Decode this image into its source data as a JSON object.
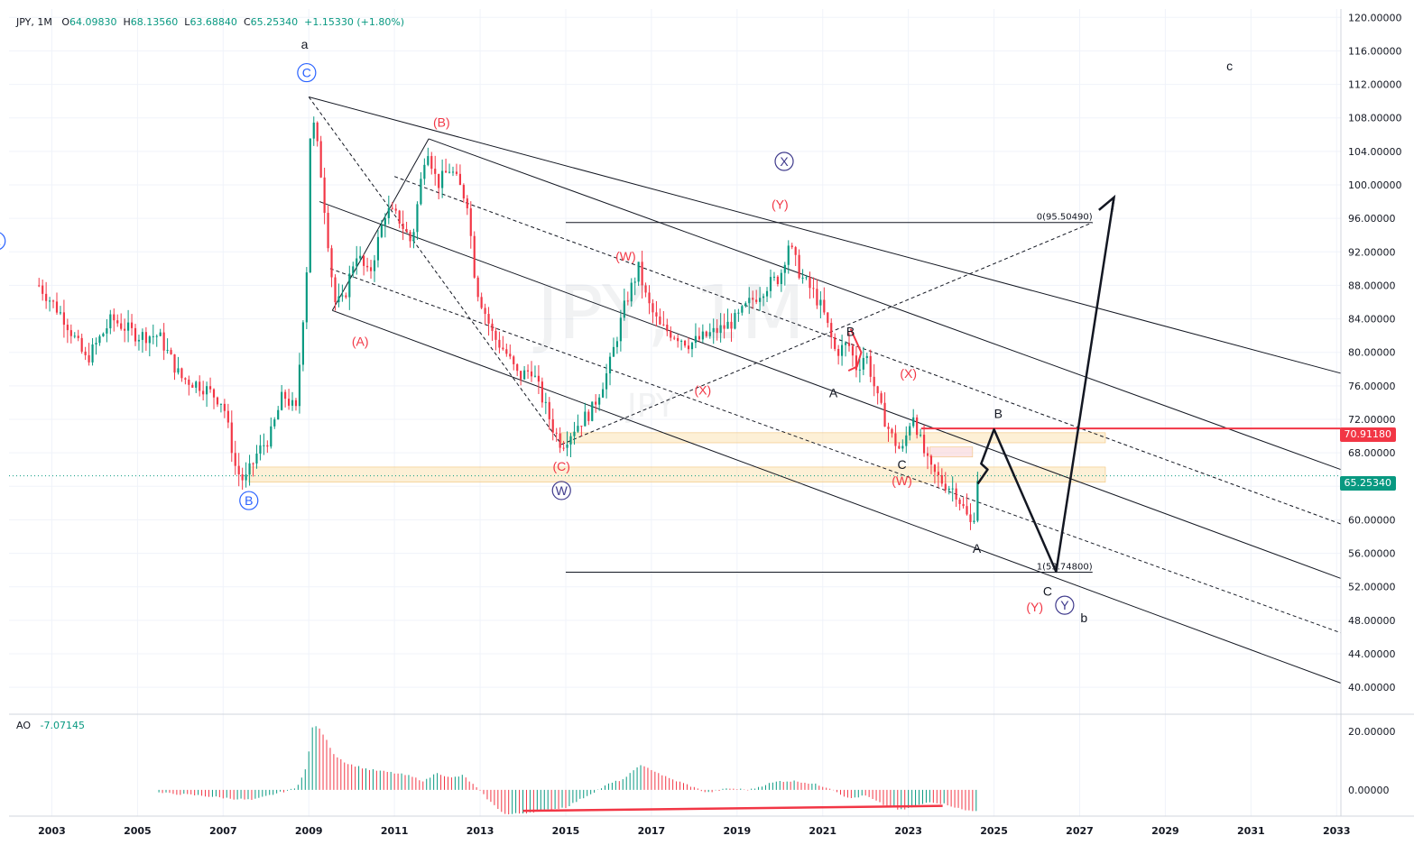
{
  "header": {
    "symbol": "JPY, 1M",
    "open_label": "O",
    "open": "64.09830",
    "high_label": "H",
    "high": "68.13560",
    "low_label": "L",
    "low": "63.68840",
    "close_label": "C",
    "close": "65.25340",
    "change": "+1.15330 (+1.80%)"
  },
  "watermark": {
    "line1": "JPY, 1M",
    "line2": "JPY"
  },
  "ao_header": {
    "name": "AO",
    "value": "-7.07145"
  },
  "price_tags": [
    {
      "value": "70.91180",
      "color": "#f23645"
    },
    {
      "value": "65.25340",
      "color": "#089981"
    }
  ],
  "chart_data": {
    "type": "candlestick",
    "symbol": "JPY",
    "interval": "1M",
    "price_axis": {
      "ylim": [
        37,
        121
      ],
      "ticks": [
        "120.00000",
        "116.00000",
        "112.00000",
        "108.00000",
        "104.00000",
        "100.00000",
        "96.00000",
        "92.00000",
        "88.00000",
        "84.00000",
        "80.00000",
        "76.00000",
        "72.00000",
        "68.00000",
        "64.00000",
        "60.00000",
        "56.00000",
        "52.00000",
        "48.00000",
        "44.00000",
        "40.00000"
      ]
    },
    "time_axis": {
      "xlim": [
        2002.0,
        2033.1
      ],
      "ticks": [
        "2003",
        "2005",
        "2007",
        "2009",
        "2011",
        "2013",
        "2015",
        "2017",
        "2019",
        "2021",
        "2023",
        "2025",
        "2027",
        "2029",
        "2031",
        "2033"
      ]
    },
    "ao_axis": {
      "ylim": [
        -9,
        25
      ],
      "ticks": [
        "20.00000",
        "0.00000"
      ]
    },
    "price_path": [
      [
        2002.7,
        88
      ],
      [
        2003.3,
        84
      ],
      [
        2003.8,
        79
      ],
      [
        2004.4,
        84
      ],
      [
        2005.0,
        82
      ],
      [
        2005.5,
        82
      ],
      [
        2006.0,
        77
      ],
      [
        2006.5,
        76
      ],
      [
        2007.0,
        74
      ],
      [
        2007.3,
        66
      ],
      [
        2007.5,
        64.5
      ],
      [
        2007.8,
        68
      ],
      [
        2008.1,
        70
      ],
      [
        2008.4,
        75
      ],
      [
        2008.7,
        73
      ],
      [
        2008.95,
        90
      ],
      [
        2009.05,
        109
      ],
      [
        2009.25,
        103
      ],
      [
        2009.6,
        86
      ],
      [
        2009.8,
        86
      ],
      [
        2010.1,
        92
      ],
      [
        2010.4,
        89
      ],
      [
        2010.8,
        97
      ],
      [
        2011.1,
        96
      ],
      [
        2011.4,
        93
      ],
      [
        2011.75,
        105
      ],
      [
        2012.0,
        100
      ],
      [
        2012.3,
        102
      ],
      [
        2012.7,
        98
      ],
      [
        2012.9,
        88
      ],
      [
        2013.3,
        82
      ],
      [
        2013.6,
        80
      ],
      [
        2013.9,
        77
      ],
      [
        2014.2,
        78
      ],
      [
        2014.7,
        71
      ],
      [
        2014.9,
        69
      ],
      [
        2015.2,
        71
      ],
      [
        2015.6,
        73
      ],
      [
        2016.0,
        78
      ],
      [
        2016.4,
        86
      ],
      [
        2016.7,
        90
      ],
      [
        2016.9,
        86
      ],
      [
        2017.2,
        83
      ],
      [
        2017.6,
        82
      ],
      [
        2017.9,
        81
      ],
      [
        2018.3,
        82
      ],
      [
        2018.7,
        83
      ],
      [
        2019.0,
        84
      ],
      [
        2019.3,
        86
      ],
      [
        2019.7,
        88
      ],
      [
        2020.0,
        89
      ],
      [
        2020.2,
        93
      ],
      [
        2020.5,
        89
      ],
      [
        2020.8,
        87
      ],
      [
        2021.0,
        85
      ],
      [
        2021.3,
        80
      ],
      [
        2021.6,
        81
      ],
      [
        2021.8,
        78
      ],
      [
        2022.0,
        80
      ],
      [
        2022.3,
        74
      ],
      [
        2022.6,
        70
      ],
      [
        2022.85,
        68
      ],
      [
        2023.1,
        73
      ],
      [
        2023.3,
        69
      ],
      [
        2023.5,
        66
      ],
      [
        2023.8,
        64.5
      ],
      [
        2024.1,
        63.5
      ],
      [
        2024.4,
        60
      ],
      [
        2024.5,
        59
      ],
      [
        2024.62,
        65.25
      ]
    ],
    "ao_series": [
      [
        2005.5,
        -1
      ],
      [
        2006.5,
        -2
      ],
      [
        2007.2,
        -3
      ],
      [
        2007.7,
        -3.5
      ],
      [
        2008.3,
        -1
      ],
      [
        2008.7,
        0.5
      ],
      [
        2008.95,
        8
      ],
      [
        2009.1,
        23
      ],
      [
        2009.3,
        20
      ],
      [
        2009.6,
        12
      ],
      [
        2009.9,
        9
      ],
      [
        2010.4,
        7
      ],
      [
        2010.9,
        6
      ],
      [
        2011.3,
        5
      ],
      [
        2011.7,
        3
      ],
      [
        2012.0,
        6
      ],
      [
        2012.3,
        4
      ],
      [
        2012.6,
        5
      ],
      [
        2012.9,
        1
      ],
      [
        2013.3,
        -5
      ],
      [
        2013.6,
        -8.5
      ],
      [
        2014.0,
        -8
      ],
      [
        2014.5,
        -7
      ],
      [
        2015.0,
        -6
      ],
      [
        2015.5,
        -2
      ],
      [
        2016.0,
        2
      ],
      [
        2016.4,
        4
      ],
      [
        2016.7,
        8.5
      ],
      [
        2017.0,
        7
      ],
      [
        2017.4,
        4
      ],
      [
        2017.8,
        2
      ],
      [
        2018.3,
        -1
      ],
      [
        2018.8,
        0.5
      ],
      [
        2019.3,
        0
      ],
      [
        2019.7,
        2
      ],
      [
        2020.0,
        3
      ],
      [
        2020.4,
        3
      ],
      [
        2020.8,
        2
      ],
      [
        2021.2,
        0.5
      ],
      [
        2021.6,
        -3
      ],
      [
        2022.0,
        -2
      ],
      [
        2022.4,
        -5
      ],
      [
        2022.8,
        -7
      ],
      [
        2023.1,
        -6
      ],
      [
        2023.5,
        -4
      ],
      [
        2023.9,
        -5
      ],
      [
        2024.3,
        -7
      ],
      [
        2024.62,
        -7.07
      ]
    ],
    "horizontal_lines": [
      {
        "x0": 2015.0,
        "x1": 2027.3,
        "y": 95.5049,
        "label": "0(95.50490)"
      },
      {
        "x0": 2015.0,
        "x1": 2027.3,
        "y": 53.748,
        "label": "1(53.74800)"
      },
      {
        "x0": 2023.3,
        "x1": 2033.1,
        "y": 70.9118,
        "color": "#f23645"
      }
    ],
    "zones": [
      {
        "x0": 2007.6,
        "x1": 2027.6,
        "y0": 64.5,
        "y1": 66.3,
        "color": "#fbe3b4"
      },
      {
        "x0": 2014.9,
        "x1": 2027.6,
        "y0": 69.2,
        "y1": 70.4,
        "color": "#fbe3b4"
      },
      {
        "x0": 2023.5,
        "x1": 2024.5,
        "y0": 67.5,
        "y1": 68.7,
        "color": "#f8d0d3"
      }
    ],
    "trend_lines": [
      {
        "points": [
          [
            2009.0,
            110.5
          ],
          [
            2033.1,
            77.5
          ]
        ],
        "style": "solid"
      },
      {
        "points": [
          [
            2009.25,
            98
          ],
          [
            2033.1,
            53
          ]
        ],
        "style": "solid"
      },
      {
        "points": [
          [
            2009.55,
            85
          ],
          [
            2033.1,
            40.5
          ]
        ],
        "style": "solid"
      },
      {
        "points": [
          [
            2009.5,
            90
          ],
          [
            2033.1,
            46.5
          ]
        ],
        "style": "dashed"
      },
      {
        "points": [
          [
            2011.0,
            101
          ],
          [
            2033.1,
            59.5
          ]
        ],
        "style": "dashed"
      },
      {
        "points": [
          [
            2009.55,
            85
          ],
          [
            2011.8,
            105.5
          ]
        ],
        "style": "solid"
      },
      {
        "points": [
          [
            2011.8,
            105.5
          ],
          [
            2033.1,
            66
          ]
        ],
        "style": "solid"
      },
      {
        "points": [
          [
            2009.0,
            110.5
          ],
          [
            2014.9,
            69
          ]
        ],
        "style": "dashed"
      },
      {
        "points": [
          [
            2014.9,
            69
          ],
          [
            2027.3,
            95.5
          ]
        ],
        "style": "dashed"
      },
      {
        "points": [
          [
            2021.65,
            82.8
          ],
          [
            2021.9,
            80
          ],
          [
            2021.8,
            78.3
          ],
          [
            2021.6,
            77.8
          ]
        ],
        "style": "red"
      }
    ],
    "projection": [
      [
        2024.62,
        64.3
      ],
      [
        2024.85,
        66
      ],
      [
        2024.7,
        66.7
      ],
      [
        2025.0,
        70.8
      ],
      [
        2026.45,
        53.8
      ],
      [
        2027.8,
        98.5
      ]
    ],
    "projection_arrow": [
      [
        2027.45,
        97
      ],
      [
        2027.8,
        98.5
      ],
      [
        2027.75,
        96.8
      ]
    ],
    "divergence_line": [
      [
        2014.0,
        -7.2
      ],
      [
        2023.8,
        -5.5
      ]
    ],
    "wave_labels": [
      {
        "text": "a",
        "x": 2008.9,
        "y": 116.8,
        "color": "#131722"
      },
      {
        "text": "C",
        "x": 2008.95,
        "y": 113.4,
        "color": "#2962ff",
        "circle": true
      },
      {
        "text": "A",
        "x": 2001.7,
        "y": 93.3,
        "color": "#2962ff",
        "circle": true
      },
      {
        "text": "B",
        "x": 2007.6,
        "y": 62.3,
        "color": "#2962ff",
        "circle": true
      },
      {
        "text": "(A)",
        "x": 2010.2,
        "y": 81.3,
        "color": "#f23645"
      },
      {
        "text": "(B)",
        "x": 2012.1,
        "y": 107.5,
        "color": "#f23645"
      },
      {
        "text": "(C)",
        "x": 2014.9,
        "y": 66.4,
        "color": "#f23645"
      },
      {
        "text": "W",
        "x": 2014.9,
        "y": 63.5,
        "color": "#3f3a8c",
        "circle": true
      },
      {
        "text": "(W)",
        "x": 2016.4,
        "y": 91.5,
        "color": "#f23645"
      },
      {
        "text": "(X)",
        "x": 2018.2,
        "y": 75.5,
        "color": "#f23645"
      },
      {
        "text": "X",
        "x": 2020.1,
        "y": 102.8,
        "color": "#3f3a8c",
        "circle": true
      },
      {
        "text": "(Y)",
        "x": 2020.0,
        "y": 97.7,
        "color": "#f23645"
      },
      {
        "text": "B",
        "x": 2021.65,
        "y": 82.5,
        "color": "#131722"
      },
      {
        "text": "A",
        "x": 2021.25,
        "y": 75.2,
        "color": "#131722"
      },
      {
        "text": "(X)",
        "x": 2023.0,
        "y": 77.5,
        "color": "#f23645"
      },
      {
        "text": "C",
        "x": 2022.85,
        "y": 66.6,
        "color": "#131722"
      },
      {
        "text": "(W)",
        "x": 2022.85,
        "y": 64.7,
        "color": "#f23645"
      },
      {
        "text": "B",
        "x": 2025.1,
        "y": 72.7,
        "color": "#131722"
      },
      {
        "text": "A",
        "x": 2024.6,
        "y": 56.6,
        "color": "#131722"
      },
      {
        "text": "C",
        "x": 2026.25,
        "y": 51.5,
        "color": "#131722"
      },
      {
        "text": "(Y)",
        "x": 2025.95,
        "y": 49.6,
        "color": "#f23645"
      },
      {
        "text": "Y",
        "x": 2026.65,
        "y": 49.8,
        "color": "#3f3a8c",
        "circle": true
      },
      {
        "text": "b",
        "x": 2027.1,
        "y": 48.3,
        "color": "#131722"
      },
      {
        "text": "c",
        "x": 2030.5,
        "y": 114.2,
        "color": "#131722"
      }
    ]
  }
}
